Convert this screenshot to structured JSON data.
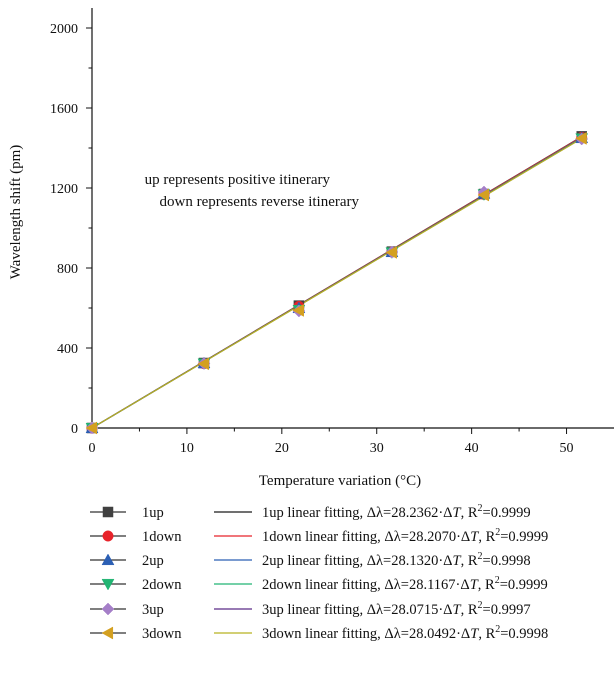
{
  "chart_data": {
    "type": "scatter",
    "xlabel": "Temperature variation (°C)",
    "ylabel": "Wavelength shift (pm)",
    "xlim": [
      0,
      55
    ],
    "ylim": [
      0,
      2100
    ],
    "xticks": [
      0,
      10,
      20,
      30,
      40,
      50
    ],
    "yticks": [
      0,
      400,
      800,
      1200,
      1600,
      2000
    ],
    "grid": false,
    "legend_position": "bottom",
    "annotation_lines": [
      "up represents positive itinerary",
      "down represents reverse itinerary"
    ],
    "series": [
      {
        "name": "1up",
        "marker": "square",
        "color": "#404040",
        "x": [
          0,
          11.8,
          21.8,
          31.6,
          41.3,
          51.6
        ],
        "y": [
          0,
          325,
          612,
          882,
          1170,
          1458
        ]
      },
      {
        "name": "1down",
        "marker": "circle",
        "color": "#e8232a",
        "x": [
          0,
          11.8,
          21.8,
          31.6,
          41.3,
          51.6
        ],
        "y": [
          0,
          322,
          608,
          880,
          1168,
          1453
        ]
      },
      {
        "name": "2up",
        "marker": "triangle-up",
        "color": "#2b5fb4",
        "x": [
          0,
          11.8,
          21.8,
          31.6,
          41.3,
          51.6
        ],
        "y": [
          0,
          324,
          600,
          880,
          1172,
          1450
        ]
      },
      {
        "name": "2down",
        "marker": "triangle-down",
        "color": "#22b573",
        "x": [
          0,
          11.8,
          21.8,
          31.6,
          41.3,
          51.6
        ],
        "y": [
          0,
          322,
          590,
          878,
          1168,
          1448
        ]
      },
      {
        "name": "3up",
        "marker": "diamond",
        "color": "#a57fc8",
        "x": [
          0,
          11.8,
          21.8,
          31.6,
          41.3,
          51.6
        ],
        "y": [
          0,
          323,
          585,
          880,
          1180,
          1445
        ]
      },
      {
        "name": "3down",
        "marker": "triangle-left",
        "color": "#d4a020",
        "x": [
          0,
          11.8,
          21.8,
          31.6,
          41.3,
          51.6
        ],
        "y": [
          0,
          321,
          588,
          878,
          1165,
          1448
        ]
      }
    ],
    "fits": [
      {
        "name": "1up linear fitting",
        "slope": 28.2362,
        "slope_text": "28.2362",
        "r2_text": "0.9999",
        "color": "#1a1a1a"
      },
      {
        "name": "1down linear fitting",
        "slope": 28.207,
        "slope_text": "28.2070",
        "r2_text": "0.9999",
        "color": "#e8232a"
      },
      {
        "name": "2up linear fitting",
        "slope": 28.132,
        "slope_text": "28.1320",
        "r2_text": "0.9998",
        "color": "#2b5fb4"
      },
      {
        "name": "2down linear fitting",
        "slope": 28.1167,
        "slope_text": "28.1167",
        "r2_text": "0.9999",
        "color": "#22b573"
      },
      {
        "name": "3up linear fitting",
        "slope": 28.0715,
        "slope_text": "28.0715",
        "r2_text": "0.9997",
        "color": "#5a2a86"
      },
      {
        "name": "3down linear fitting",
        "slope": 28.0492,
        "slope_text": "28.0492",
        "r2_text": "0.9998",
        "color": "#b7b220"
      }
    ],
    "fit_x_range": [
      0,
      51.6
    ]
  }
}
